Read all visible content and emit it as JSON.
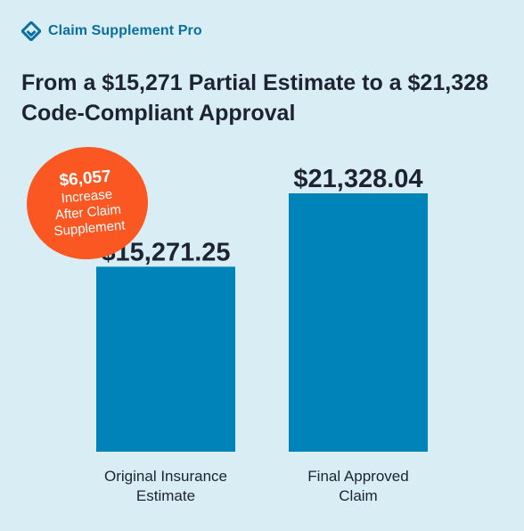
{
  "brand": {
    "name": "Claim Supplement Pro",
    "icon": "claim-supplement-logo-icon",
    "color": "#0a6f9f"
  },
  "title": "From a $15,271 Partial Estimate to a $21,328 Code-Compliant Approval",
  "badge": {
    "amount": "$6,057",
    "lines": [
      "Increase",
      "After Claim",
      "Supplement"
    ],
    "color": "#fb5722"
  },
  "colors": {
    "background": "#d8edf4",
    "bar": "#0083b9",
    "text": "#1d2333"
  },
  "chart_data": {
    "type": "bar",
    "categories": [
      [
        "Original Insurance",
        "Estimate"
      ],
      [
        "Final Approved",
        "Claim"
      ]
    ],
    "values": [
      15271.25,
      21328.04
    ],
    "value_labels": [
      "$15,271.25",
      "$21,328.04"
    ],
    "title": "From a $15,271 Partial Estimate to a $21,328 Code-Compliant Approval",
    "xlabel": "",
    "ylabel": "",
    "ylim": [
      0,
      21328.04
    ],
    "grid": false,
    "legend": "none"
  }
}
